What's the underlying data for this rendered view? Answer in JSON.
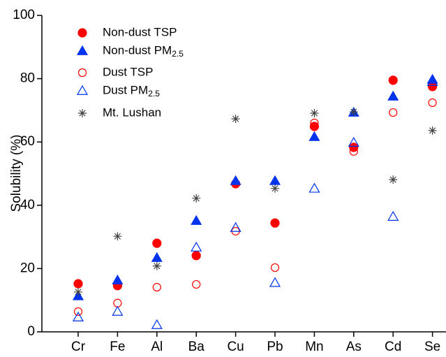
{
  "chart_data": {
    "type": "scatter",
    "y_label": "Solubility (%)",
    "categories": [
      "Cr",
      "Fe",
      "Al",
      "Ba",
      "Cu",
      "Pb",
      "Mn",
      "As",
      "Cd",
      "Se"
    ],
    "ylim": [
      0,
      100
    ],
    "yticks": [
      0,
      20,
      40,
      60,
      80,
      100
    ],
    "legend": "top-left",
    "series": [
      {
        "name": "Non-dust TSP",
        "color": "#ff0000",
        "marker": "circle-filled",
        "values": [
          15.2,
          14.6,
          28.0,
          24.1,
          46.8,
          34.4,
          64.9,
          58.3,
          79.5,
          77.5
        ]
      },
      {
        "name": "Non-dust PM2.5",
        "color": "#0033ee",
        "marker": "triangle-filled",
        "values": [
          11.3,
          16.3,
          23.4,
          35.1,
          47.7,
          47.7,
          61.6,
          69.3,
          74.4,
          79.7
        ]
      },
      {
        "name": "Dust TSP",
        "color": "#ff0000",
        "marker": "circle-open",
        "values": [
          6.4,
          9.1,
          14.1,
          15.0,
          31.8,
          20.3,
          66.0,
          57.0,
          69.3,
          72.4
        ]
      },
      {
        "name": "Dust PM2.5",
        "color": "#0033ee",
        "marker": "triangle-open",
        "values": [
          4.6,
          6.4,
          2.2,
          26.7,
          32.9,
          15.5,
          45.3,
          59.8,
          36.4,
          79.0
        ]
      },
      {
        "name": "Mt. Lushan",
        "color": "#444444",
        "marker": "asterisk",
        "values": [
          12.6,
          30.2,
          20.8,
          42.2,
          67.3,
          45.3,
          69.1,
          69.5,
          48.1,
          63.6
        ]
      }
    ]
  }
}
